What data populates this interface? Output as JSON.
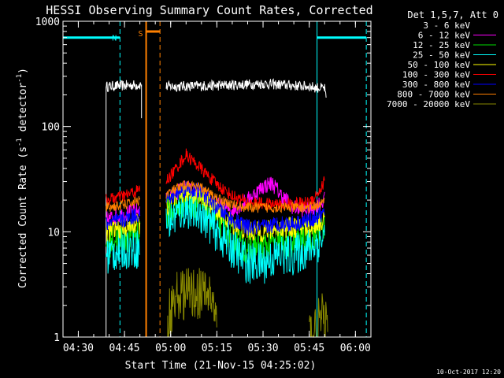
{
  "chart_data": {
    "type": "line",
    "title": "HESSI Observing Summary Count Rates, Corrected",
    "xlabel": "Start Time (21-Nov-15 04:25:02)",
    "ylabel_parts": [
      "Corrected Count Rate (s",
      "-1",
      " detector",
      "-1",
      ")"
    ],
    "x_unit": "minutes after 04:25:02 on 21-Nov-15",
    "x_range": [
      0,
      100
    ],
    "y_scale": "log",
    "y_range": [
      1,
      1000
    ],
    "x_ticks": [
      {
        "label": "04:30",
        "t": 4.97
      },
      {
        "label": "04:45",
        "t": 19.97
      },
      {
        "label": "05:00",
        "t": 34.97
      },
      {
        "label": "05:15",
        "t": 49.97
      },
      {
        "label": "05:30",
        "t": 64.97
      },
      {
        "label": "05:45",
        "t": 79.97
      },
      {
        "label": "06:00",
        "t": 94.97
      }
    ],
    "y_ticks": [
      {
        "label": "1",
        "v": 1
      },
      {
        "label": "10",
        "v": 10
      },
      {
        "label": "100",
        "v": 100
      },
      {
        "label": "1000",
        "v": 1000
      }
    ],
    "legend": {
      "title": "Det 1,5,7, Att 0",
      "placement": "right",
      "entries": [
        {
          "label": "3 - 6 keV",
          "color": "#000000"
        },
        {
          "label": "6 - 12 keV",
          "color": "#ff00ff"
        },
        {
          "label": "12 - 25 keV",
          "color": "#00dd00"
        },
        {
          "label": "25 - 50 keV",
          "color": "#00ffff"
        },
        {
          "label": "50 - 100 keV",
          "color": "#ffff00"
        },
        {
          "label": "100 - 300 keV",
          "color": "#ff0000"
        },
        {
          "label": "300 - 800 keV",
          "color": "#0000ff"
        },
        {
          "label": "800 - 7000 keV",
          "color": "#ff8000"
        },
        {
          "label": "7000 - 20000 keV",
          "color": "#888800"
        }
      ]
    },
    "night_markers": {
      "label": "N",
      "color": "#00ffff",
      "bar_level": 700,
      "bars": [
        [
          0,
          18.5
        ],
        [
          82.5,
          98.5
        ]
      ],
      "solid_lines": [
        0,
        82.5
      ],
      "dashed_lines": [
        18.5,
        98.5
      ]
    },
    "saa_markers": {
      "label": "S",
      "color": "#ff8000",
      "bar_level": 800,
      "bar": [
        27,
        31.5
      ],
      "solid_line": 27,
      "dashed_line": 31.5
    },
    "series": [
      {
        "name": "3 - 6 keV",
        "color": "#ffffff",
        "points": [
          [
            14,
            1
          ],
          [
            14,
            240
          ],
          [
            25.5,
            250
          ],
          [
            25.5,
            120
          ]
        ],
        "points2": [
          [
            33.5,
            240
          ],
          [
            50,
            245
          ],
          [
            65,
            255
          ],
          [
            75,
            245
          ],
          [
            80,
            240
          ],
          [
            82,
            235
          ],
          [
            85,
            230
          ],
          [
            85.5,
            170
          ]
        ],
        "noise": 0.05
      },
      {
        "name": "6 - 12 keV",
        "color": "#ff00ff",
        "points": [
          [
            14,
            13
          ],
          [
            17,
            14
          ],
          [
            25,
            16
          ]
        ],
        "points2": [
          [
            33.5,
            20
          ],
          [
            37,
            24
          ],
          [
            40,
            26
          ],
          [
            45,
            22
          ],
          [
            50,
            18
          ],
          [
            55,
            16
          ],
          [
            60,
            20
          ],
          [
            65,
            27
          ],
          [
            68,
            29
          ],
          [
            71,
            22
          ],
          [
            75,
            17
          ],
          [
            80,
            16
          ],
          [
            85,
            20
          ]
        ],
        "noise": 0.08
      },
      {
        "name": "12 - 25 keV",
        "color": "#00dd00",
        "points": [
          [
            14,
            8
          ],
          [
            20,
            9
          ],
          [
            25,
            10
          ]
        ],
        "points2": [
          [
            33.5,
            15
          ],
          [
            40,
            20
          ],
          [
            45,
            18
          ],
          [
            50,
            13
          ],
          [
            55,
            9
          ],
          [
            60,
            7
          ],
          [
            65,
            7
          ],
          [
            70,
            8
          ],
          [
            75,
            8
          ],
          [
            80,
            9
          ],
          [
            85,
            11
          ]
        ],
        "noise": 0.16
      },
      {
        "name": "25 - 50 keV",
        "color": "#00ffff",
        "points": [
          [
            14,
            6
          ],
          [
            20,
            7
          ],
          [
            25,
            7
          ]
        ],
        "points2": [
          [
            33.5,
            12
          ],
          [
            40,
            17
          ],
          [
            45,
            15
          ],
          [
            50,
            10
          ],
          [
            55,
            7
          ],
          [
            60,
            5
          ],
          [
            65,
            5
          ],
          [
            70,
            6
          ],
          [
            75,
            6
          ],
          [
            80,
            7
          ],
          [
            85,
            9
          ]
        ],
        "noise": 0.2
      },
      {
        "name": "50 - 100 keV",
        "color": "#ffff00",
        "points": [
          [
            14,
            10
          ],
          [
            20,
            11
          ],
          [
            25,
            12
          ]
        ],
        "points2": [
          [
            33.5,
            17
          ],
          [
            40,
            24
          ],
          [
            45,
            22
          ],
          [
            50,
            16
          ],
          [
            55,
            12
          ],
          [
            60,
            10
          ],
          [
            65,
            10
          ],
          [
            70,
            11
          ],
          [
            75,
            11
          ],
          [
            80,
            11
          ],
          [
            85,
            13
          ]
        ],
        "noise": 0.1
      },
      {
        "name": "100 - 300 keV",
        "color": "#ff0000",
        "points": [
          [
            14,
            20
          ],
          [
            20,
            22
          ],
          [
            25,
            25
          ]
        ],
        "points2": [
          [
            33.5,
            30
          ],
          [
            38,
            45
          ],
          [
            40,
            54
          ],
          [
            44,
            42
          ],
          [
            50,
            28
          ],
          [
            55,
            22
          ],
          [
            60,
            19
          ],
          [
            70,
            18
          ],
          [
            80,
            19
          ],
          [
            84,
            26
          ],
          [
            85,
            32
          ]
        ],
        "noise": 0.06
      },
      {
        "name": "300 - 800 keV",
        "color": "#0000ff",
        "points": [
          [
            14,
            12
          ],
          [
            20,
            13
          ],
          [
            25,
            15
          ]
        ],
        "points2": [
          [
            33.5,
            20
          ],
          [
            40,
            26
          ],
          [
            45,
            24
          ],
          [
            50,
            17
          ],
          [
            55,
            13
          ],
          [
            60,
            11
          ],
          [
            65,
            11
          ],
          [
            70,
            12
          ],
          [
            75,
            12
          ],
          [
            80,
            13
          ],
          [
            85,
            15
          ]
        ],
        "noise": 0.08
      },
      {
        "name": "800 - 7000 keV",
        "color": "#ff8000",
        "points": [
          [
            14,
            17
          ],
          [
            20,
            18
          ],
          [
            25,
            20
          ]
        ],
        "points2": [
          [
            33.5,
            23
          ],
          [
            40,
            28
          ],
          [
            45,
            26
          ],
          [
            50,
            21
          ],
          [
            55,
            18
          ],
          [
            60,
            17
          ],
          [
            70,
            17
          ],
          [
            80,
            17
          ],
          [
            85,
            19
          ]
        ],
        "noise": 0.05
      },
      {
        "name": "7000 - 20000 keV",
        "color": "#888800",
        "points": [],
        "points2": [
          [
            34,
            1
          ],
          [
            34,
            1.6
          ],
          [
            37,
            2.5
          ],
          [
            40,
            2.6
          ],
          [
            44,
            2.6
          ],
          [
            48,
            2.5
          ],
          [
            50,
            1.3
          ]
        ],
        "noise": 0.25,
        "tail": [
          [
            80,
            1
          ],
          [
            84,
            1.5
          ],
          [
            86,
            1.2
          ]
        ]
      }
    ]
  },
  "footer": {
    "date": "10-Oct-2017 12:20"
  }
}
